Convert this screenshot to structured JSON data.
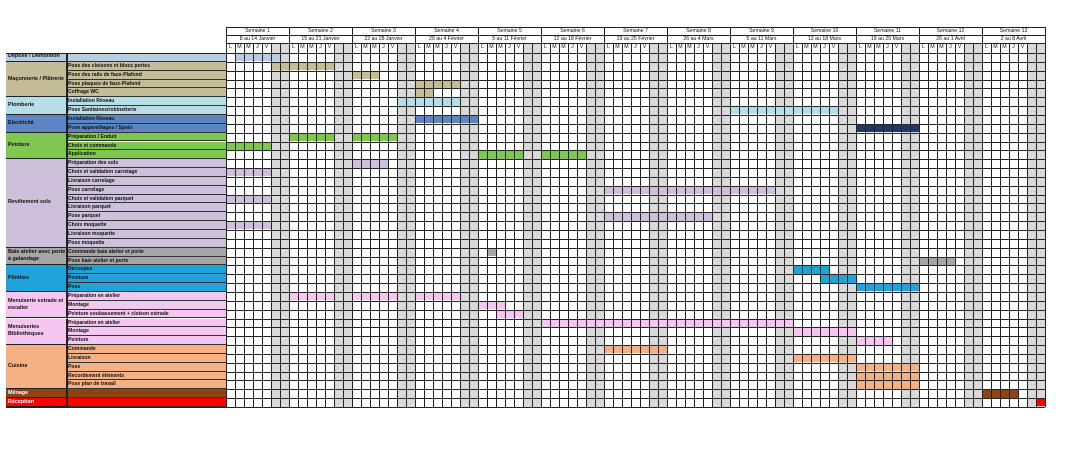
{
  "colors": {
    "grey_weekend": "#d9d9d9",
    "bluegrey": "#b8cce4",
    "tan": "#c4bd97",
    "lightblue": "#b7dee8",
    "midblue": "#5b86c6",
    "navy": "#1f3864",
    "green": "#7fc751",
    "lavender": "#ccc0da",
    "darkgrey": "#a6a6a6",
    "skyblue": "#1fa3d9",
    "pink": "#f4c6f0",
    "peach": "#f4b183",
    "brown": "#8b4513",
    "red": "#ff0000"
  },
  "weeks": [
    {
      "name": "Semaine 1",
      "dates": "8 au 14 Janvier"
    },
    {
      "name": "Semaine 2",
      "dates": "15 au 21 Janvier"
    },
    {
      "name": "Semaine 3",
      "dates": "22 au 28 Janvier"
    },
    {
      "name": "Semaine 4",
      "dates": "29 au 4 Février"
    },
    {
      "name": "Semaine 5",
      "dates": "5 au 11 Février"
    },
    {
      "name": "Semaine 6",
      "dates": "12 au 18 Février"
    },
    {
      "name": "Semaine 7",
      "dates": "19 au 25 Février"
    },
    {
      "name": "Semaine 8",
      "dates": "26 au 4 Mars"
    },
    {
      "name": "Semaine 9",
      "dates": "5 au 11 Mars"
    },
    {
      "name": "Semaine 10",
      "dates": "12 au 18 Mars"
    },
    {
      "name": "Semaine 11",
      "dates": "19 au 25 Mars"
    },
    {
      "name": "Semaine 12",
      "dates": "26 au 1 Avril"
    },
    {
      "name": "Semaine 13",
      "dates": "2 au 8 Avril"
    }
  ],
  "day_letters": [
    "L",
    "M",
    "M",
    "J",
    "V",
    "S",
    "D"
  ],
  "sections": [
    {
      "label": "Dépose / Démolition",
      "color": "bluegrey",
      "tasks": [
        {
          "label": "",
          "bars": [
            [
              0,
              1,
              5
            ]
          ]
        }
      ]
    },
    {
      "label": "Maçonnerie / Plâtrerie",
      "color": "tan",
      "tasks": [
        {
          "label": "Pose des cloisons et blocs portes",
          "bars": [
            [
              0,
              5,
              2
            ],
            [
              1,
              0,
              5
            ]
          ]
        },
        {
          "label": "Pose des rails de faux-Plafond",
          "bars": [
            [
              2,
              0,
              3
            ]
          ]
        },
        {
          "label": "Pose plaques de faux-Plafond",
          "bars": [
            [
              3,
              0,
              5
            ]
          ]
        },
        {
          "label": "Coffrage WC",
          "bars": [
            [
              3,
              0,
              2
            ]
          ]
        }
      ]
    },
    {
      "label": "Plomberie",
      "color": "lightblue",
      "tasks": [
        {
          "label": "Installation Réseau",
          "bars": [
            [
              2,
              5,
              2
            ],
            [
              3,
              0,
              5
            ]
          ]
        },
        {
          "label": "Pose Sanitaines/robinetterie",
          "bars": [
            [
              8,
              0,
              7
            ],
            [
              9,
              0,
              5
            ]
          ]
        }
      ]
    },
    {
      "label": "Electricité",
      "color": "midblue",
      "tasks": [
        {
          "label": "Installation Réseau",
          "bars": [
            [
              3,
              0,
              2
            ],
            [
              3,
              2,
              5
            ]
          ]
        },
        {
          "label": "Pose appareillages / Spots",
          "bars": [
            [
              10,
              0,
              7
            ]
          ],
          "bar_color": "navy"
        }
      ]
    },
    {
      "label": "Peinture",
      "color": "green",
      "tasks": [
        {
          "label": "Préparation / Enduit",
          "bars": [
            [
              1,
              0,
              5
            ],
            [
              2,
              0,
              5
            ]
          ]
        },
        {
          "label": "Choix et commande",
          "bars": [
            [
              0,
              0,
              5
            ]
          ]
        },
        {
          "label": "Application",
          "bars": [
            [
              4,
              0,
              5
            ],
            [
              5,
              0,
              5
            ]
          ]
        }
      ]
    },
    {
      "label": "Revêtement sols",
      "color": "lavender",
      "tasks": [
        {
          "label": "Préparation des sols",
          "bars": [
            [
              2,
              0,
              4
            ]
          ]
        },
        {
          "label": "Choix et validation carrelage",
          "bars": [
            [
              0,
              0,
              5
            ]
          ]
        },
        {
          "label": "Livraison carrelage",
          "bars": []
        },
        {
          "label": "Pose carrelage",
          "bars": [
            [
              6,
              0,
              7
            ],
            [
              7,
              0,
              7
            ],
            [
              8,
              0,
              5
            ]
          ]
        },
        {
          "label": "Choix et validation parquet",
          "bars": [
            [
              0,
              0,
              5
            ]
          ]
        },
        {
          "label": "Livraison parquet",
          "bars": []
        },
        {
          "label": "Pose parquet",
          "bars": [
            [
              6,
              0,
              7
            ],
            [
              7,
              0,
              5
            ]
          ]
        },
        {
          "label": "Choix moquette",
          "bars": [
            [
              0,
              0,
              5
            ]
          ]
        },
        {
          "label": "Livraison moquette",
          "bars": []
        },
        {
          "label": "Pose moquette",
          "bars": []
        }
      ]
    },
    {
      "label": "Baie atelier avec porte à galandage",
      "color": "darkgrey",
      "tasks": [
        {
          "label": "Commande baie atelier et porte",
          "bars": [
            [
              4,
              1,
              1
            ]
          ]
        },
        {
          "label": "Pose baie atelier et porte",
          "bars": [
            [
              11,
              0,
              4
            ]
          ]
        }
      ]
    },
    {
      "label": "Plinthes",
      "color": "skyblue",
      "tasks": [
        {
          "label": "Découpes",
          "bars": [
            [
              9,
              0,
              4
            ]
          ]
        },
        {
          "label": "Peinture",
          "bars": [
            [
              9,
              3,
              4
            ]
          ]
        },
        {
          "label": "Pose",
          "bars": [
            [
              10,
              0,
              7
            ]
          ]
        }
      ]
    },
    {
      "label": "Menuiserie estrade et escalier",
      "color": "pink",
      "tasks": [
        {
          "label": "Préparation en atelier",
          "bars": [
            [
              1,
              0,
              5
            ],
            [
              2,
              0,
              5
            ],
            [
              3,
              0,
              5
            ]
          ]
        },
        {
          "label": "Montage",
          "bars": [
            [
              4,
              0,
              3
            ]
          ]
        },
        {
          "label": "Peinture soubassement + cloison estrade",
          "bars": [
            [
              4,
              2,
              3
            ]
          ]
        }
      ]
    },
    {
      "label": "Menuiseries Bibliothèques",
      "color": "pink",
      "tasks": [
        {
          "label": "Préparation en atelier",
          "bars": [
            [
              5,
              0,
              7
            ],
            [
              6,
              0,
              7
            ],
            [
              7,
              0,
              7
            ],
            [
              8,
              0,
              7
            ]
          ]
        },
        {
          "label": "Montage",
          "bars": [
            [
              9,
              0,
              7
            ]
          ]
        },
        {
          "label": "Peinture",
          "bars": [
            [
              10,
              0,
              4
            ]
          ]
        }
      ]
    },
    {
      "label": "Cuisine",
      "color": "peach",
      "tasks": [
        {
          "label": "Commande",
          "bars": [
            [
              6,
              0,
              7
            ]
          ]
        },
        {
          "label": "Livraison",
          "bars": [
            [
              9,
              0,
              7
            ]
          ]
        },
        {
          "label": "Pose",
          "bars": [
            [
              10,
              0,
              7
            ]
          ]
        },
        {
          "label": "Recordement éléments",
          "bars": [
            [
              10,
              0,
              7
            ]
          ]
        },
        {
          "label": "Pose plan de travail",
          "bars": [
            [
              10,
              0,
              7
            ]
          ]
        }
      ]
    },
    {
      "label": "Ménage",
      "color": "brown",
      "tasks": [
        {
          "label": "",
          "bars": [
            [
              12,
              0,
              4
            ]
          ]
        }
      ]
    },
    {
      "label": "Réception",
      "color": "red",
      "tasks": [
        {
          "label": "",
          "bars": [
            [
              12,
              6,
              1
            ]
          ]
        }
      ]
    }
  ]
}
